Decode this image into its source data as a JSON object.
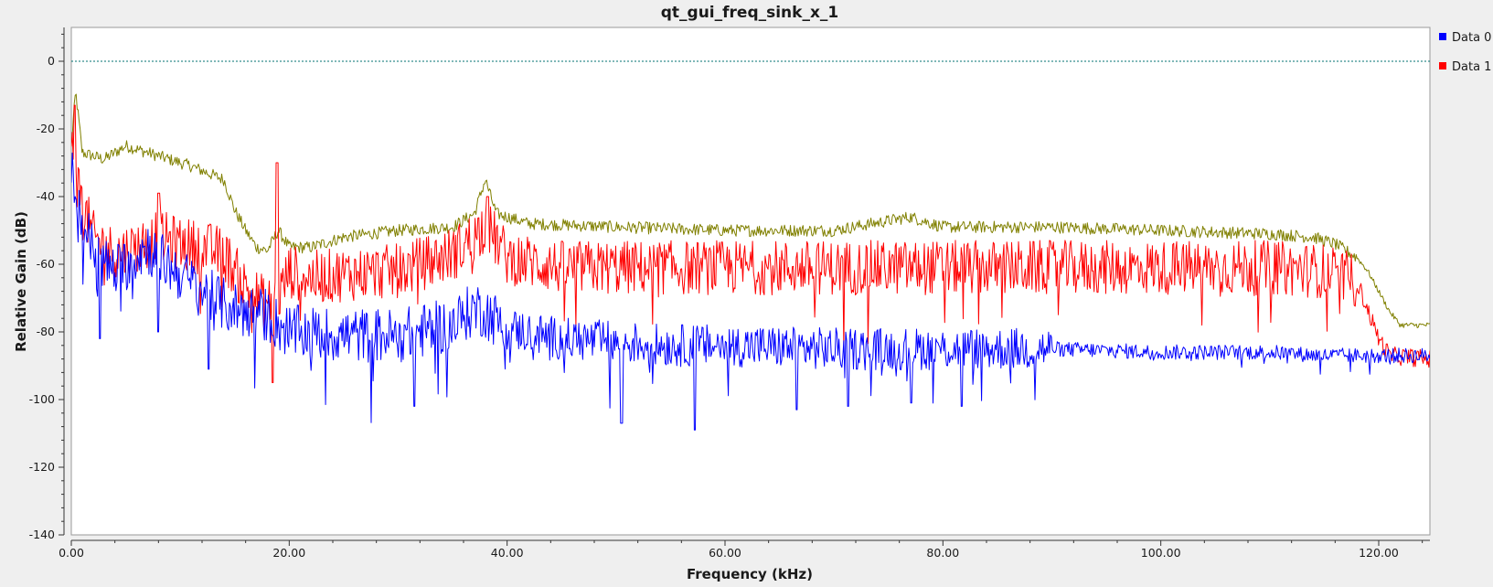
{
  "window": {
    "title": "qt_gui_freq_sink_x_1"
  },
  "colors": {
    "data0": "#0000ff",
    "data1": "#ff0000",
    "max_hold": "#808000",
    "ref_line": "#007070"
  },
  "chart_data": {
    "type": "line",
    "title": "qt_gui_freq_sink_x_1",
    "xlabel": "Frequency (kHz)",
    "ylabel": "Relative Gain (dB)",
    "xlim": [
      0,
      124.7
    ],
    "ylim": [
      -140,
      10
    ],
    "xticks": [
      "0.00",
      "20.00",
      "40.00",
      "60.00",
      "80.00",
      "100.00",
      "120.00"
    ],
    "yticks": [
      "0",
      "-20",
      "-40",
      "-60",
      "-80",
      "-100",
      "-120",
      "-140"
    ],
    "grid": false,
    "legend_position": "right",
    "reference_line": 0,
    "series": [
      {
        "name": "Data 0",
        "color": "#0000ff",
        "x": [
          0,
          0.5,
          1,
          2,
          3,
          4,
          5,
          6,
          7,
          8,
          10,
          12,
          14,
          16,
          18,
          19,
          20,
          25,
          30,
          35,
          37,
          38,
          40,
          45,
          50,
          55,
          60,
          70,
          80,
          90,
          100,
          110,
          115,
          120,
          124.7
        ],
        "values": [
          -33,
          -40,
          -48,
          -55,
          -60,
          -62,
          -60,
          -57,
          -55,
          -58,
          -63,
          -68,
          -72,
          -74,
          -75,
          -78,
          -80,
          -81,
          -81,
          -78,
          -73,
          -74,
          -79,
          -82,
          -83,
          -84,
          -84,
          -85,
          -85,
          -85,
          -86,
          -86,
          -87,
          -87,
          -87
        ],
        "min_spikes": [
          [
            2.6,
            -82
          ],
          [
            8,
            -80
          ],
          [
            12.6,
            -91
          ],
          [
            31.5,
            -102
          ],
          [
            50.5,
            -107
          ],
          [
            57.2,
            -109
          ],
          [
            66.6,
            -103
          ],
          [
            71.3,
            -102
          ],
          [
            77.1,
            -101
          ],
          [
            81.7,
            -102
          ]
        ]
      },
      {
        "name": "Data 1",
        "color": "#ff0000",
        "x": [
          0,
          0.3,
          1,
          2,
          4,
          6,
          8,
          10,
          12,
          14,
          16,
          18,
          19,
          20,
          22,
          25,
          30,
          35,
          37,
          38,
          40,
          45,
          50,
          60,
          70,
          80,
          90,
          100,
          110,
          115,
          118,
          120,
          121,
          124.7
        ],
        "values": [
          -22,
          -32,
          -42,
          -52,
          -57,
          -55,
          -52,
          -54,
          -55,
          -57,
          -67,
          -72,
          -70,
          -62,
          -64,
          -63,
          -62,
          -57,
          -52,
          -48,
          -58,
          -61,
          -61,
          -61,
          -61,
          -61,
          -61,
          -61,
          -61,
          -62,
          -65,
          -82,
          -87,
          -88
        ],
        "peaks": [
          [
            0.3,
            -13
          ],
          [
            8,
            -39
          ],
          [
            18.9,
            -30
          ],
          [
            38.2,
            -40
          ]
        ],
        "min_spikes": [
          [
            18.5,
            -95
          ]
        ]
      },
      {
        "name": "",
        "color": "#808000",
        "x": [
          0,
          0.4,
          1,
          3,
          5,
          8,
          11,
          14,
          15,
          16,
          17,
          18,
          19,
          20,
          22,
          25,
          30,
          35,
          37,
          38,
          39,
          42,
          50,
          60,
          70,
          77,
          80,
          90,
          100,
          110,
          114,
          116,
          118,
          119,
          120,
          121,
          122,
          124.7
        ],
        "values": [
          -25,
          -9,
          -27,
          -29,
          -25,
          -28,
          -31,
          -35,
          -44,
          -50,
          -55,
          -56,
          -50,
          -55,
          -55,
          -52,
          -50,
          -49,
          -45,
          -35,
          -45,
          -48,
          -49,
          -50,
          -50,
          -46,
          -49,
          -49,
          -50,
          -51,
          -52,
          -54,
          -58,
          -62,
          -68,
          -74,
          -78,
          -78
        ]
      }
    ]
  }
}
